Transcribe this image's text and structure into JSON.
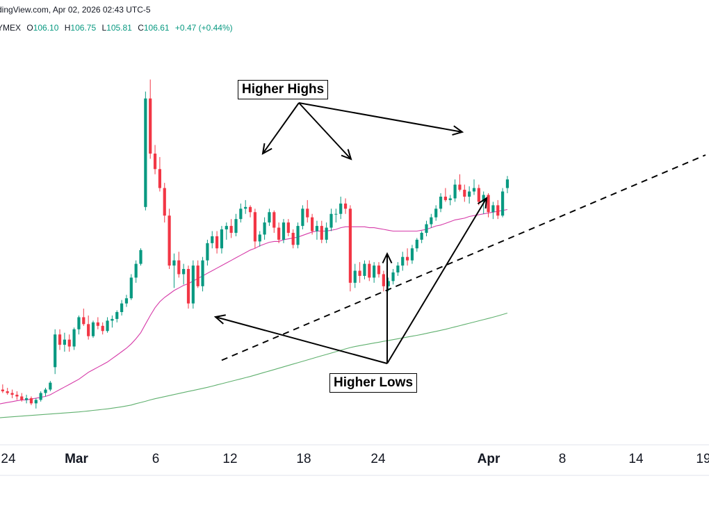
{
  "header": {
    "source_line": "dingView.com, Apr 02, 2026 02:43 UTC-5",
    "exchange": "YMEX",
    "ohlc": {
      "o_label": "O",
      "o": "106.10",
      "h_label": "H",
      "h": "106.75",
      "l_label": "L",
      "l": "105.81",
      "c_label": "C",
      "c": "106.61",
      "change": "+0.47 (+0.44%)"
    }
  },
  "annotations": {
    "higher_highs": "Higher Highs",
    "higher_lows": "Higher Lows"
  },
  "colors": {
    "up": "#089981",
    "down": "#f23645",
    "ma_fast": "#d63aa8",
    "ma_slow": "#5fb06e",
    "trendline": "#000000",
    "arrow": "#000000"
  },
  "chart_data": {
    "type": "candlestick",
    "x_tick_labels": [
      "24",
      "Mar",
      "6",
      "12",
      "18",
      "24",
      "Apr",
      "8",
      "14",
      "19"
    ],
    "ylim": [
      92,
      115
    ],
    "candles": [
      [
        94.2,
        94.6,
        94.0,
        94.4
      ],
      [
        94.4,
        94.7,
        94.2,
        94.3
      ],
      [
        94.3,
        94.5,
        94.1,
        94.2
      ],
      [
        94.2,
        94.4,
        93.9,
        94.1
      ],
      [
        94.1,
        94.3,
        93.8,
        94.0
      ],
      [
        94.0,
        94.2,
        93.7,
        93.8
      ],
      [
        93.8,
        94.1,
        93.6,
        93.9
      ],
      [
        93.9,
        94.0,
        93.5,
        93.6
      ],
      [
        93.6,
        93.9,
        93.3,
        93.8
      ],
      [
        93.8,
        94.3,
        93.7,
        94.2
      ],
      [
        94.2,
        94.5,
        94.0,
        94.4
      ],
      [
        94.4,
        94.9,
        94.3,
        94.8
      ],
      [
        95.7,
        97.9,
        95.3,
        97.6
      ],
      [
        97.6,
        97.9,
        96.7,
        97.0
      ],
      [
        97.0,
        97.7,
        96.6,
        97.3
      ],
      [
        97.3,
        97.6,
        96.6,
        96.9
      ],
      [
        96.9,
        98.0,
        96.7,
        97.9
      ],
      [
        97.9,
        98.7,
        97.6,
        98.6
      ],
      [
        98.6,
        99.1,
        98.1,
        98.2
      ],
      [
        98.2,
        98.7,
        97.3,
        97.5
      ],
      [
        97.5,
        98.4,
        97.4,
        98.3
      ],
      [
        98.3,
        98.6,
        97.9,
        98.1
      ],
      [
        98.1,
        98.3,
        97.6,
        97.8
      ],
      [
        97.8,
        98.6,
        97.7,
        98.4
      ],
      [
        98.4,
        98.7,
        98.0,
        98.5
      ],
      [
        98.5,
        99.0,
        98.3,
        98.9
      ],
      [
        98.9,
        99.6,
        98.7,
        99.4
      ],
      [
        99.4,
        99.9,
        99.2,
        99.7
      ],
      [
        99.7,
        101.1,
        99.6,
        100.9
      ],
      [
        100.9,
        101.9,
        100.6,
        101.7
      ],
      [
        101.7,
        102.6,
        101.6,
        102.5
      ],
      [
        105.0,
        111.7,
        104.8,
        111.3
      ],
      [
        111.3,
        112.4,
        107.8,
        108.1
      ],
      [
        108.1,
        108.6,
        106.9,
        107.2
      ],
      [
        107.2,
        107.9,
        105.9,
        106.1
      ],
      [
        106.1,
        106.4,
        104.1,
        104.5
      ],
      [
        104.5,
        104.9,
        101.4,
        101.6
      ],
      [
        101.6,
        102.3,
        100.3,
        101.9
      ],
      [
        101.9,
        102.4,
        100.9,
        101.1
      ],
      [
        101.1,
        101.7,
        100.5,
        101.4
      ],
      [
        101.4,
        101.6,
        99.1,
        99.4
      ],
      [
        99.4,
        101.9,
        99.1,
        101.6
      ],
      [
        101.6,
        101.9,
        100.3,
        100.4
      ],
      [
        100.4,
        102.1,
        100.1,
        101.9
      ],
      [
        101.9,
        103.1,
        101.6,
        102.9
      ],
      [
        102.9,
        103.6,
        102.6,
        103.3
      ],
      [
        103.3,
        103.6,
        102.3,
        102.6
      ],
      [
        102.6,
        103.9,
        102.3,
        103.7
      ],
      [
        103.7,
        104.1,
        103.1,
        103.9
      ],
      [
        103.9,
        104.3,
        103.2,
        103.5
      ],
      [
        103.5,
        104.6,
        103.3,
        104.3
      ],
      [
        104.3,
        105.2,
        104.1,
        104.9
      ],
      [
        104.9,
        105.4,
        104.6,
        105.0
      ],
      [
        105.0,
        105.1,
        104.4,
        104.7
      ],
      [
        104.7,
        104.9,
        102.6,
        103.0
      ],
      [
        103.0,
        103.6,
        102.7,
        103.4
      ],
      [
        103.4,
        104.4,
        103.1,
        104.1
      ],
      [
        104.1,
        104.9,
        103.9,
        104.7
      ],
      [
        104.7,
        104.8,
        103.5,
        103.8
      ],
      [
        103.8,
        104.1,
        102.9,
        103.1
      ],
      [
        103.1,
        104.3,
        102.9,
        104.1
      ],
      [
        104.1,
        104.3,
        103.3,
        103.5
      ],
      [
        103.5,
        103.7,
        102.6,
        102.8
      ],
      [
        102.8,
        104.1,
        102.6,
        103.9
      ],
      [
        103.9,
        105.1,
        103.7,
        104.9
      ],
      [
        104.9,
        105.4,
        104.1,
        104.4
      ],
      [
        104.4,
        104.6,
        103.4,
        103.6
      ],
      [
        103.6,
        104.2,
        103.1,
        103.9
      ],
      [
        103.9,
        104.2,
        102.9,
        103.1
      ],
      [
        103.1,
        104.1,
        102.9,
        103.8
      ],
      [
        103.8,
        104.9,
        103.6,
        104.6
      ],
      [
        104.6,
        104.9,
        104.1,
        104.6
      ],
      [
        104.6,
        105.6,
        104.3,
        105.2
      ],
      [
        105.2,
        105.5,
        104.6,
        104.9
      ],
      [
        104.9,
        105.1,
        100.1,
        100.6
      ],
      [
        100.6,
        101.7,
        100.3,
        101.3
      ],
      [
        101.3,
        101.8,
        100.6,
        101.0
      ],
      [
        101.0,
        101.9,
        100.8,
        101.7
      ],
      [
        101.7,
        101.9,
        100.7,
        100.9
      ],
      [
        100.9,
        101.8,
        100.6,
        101.6
      ],
      [
        101.6,
        101.8,
        100.9,
        101.1
      ],
      [
        101.1,
        101.3,
        100.1,
        100.4
      ],
      [
        100.4,
        100.9,
        100.1,
        100.7
      ],
      [
        100.7,
        101.4,
        100.5,
        101.2
      ],
      [
        101.2,
        101.8,
        101.0,
        101.6
      ],
      [
        101.6,
        102.4,
        101.3,
        102.1
      ],
      [
        102.1,
        102.6,
        101.6,
        101.9
      ],
      [
        101.9,
        102.8,
        101.7,
        102.6
      ],
      [
        102.6,
        103.2,
        102.4,
        103.1
      ],
      [
        103.1,
        103.6,
        102.9,
        103.5
      ],
      [
        103.5,
        104.2,
        103.3,
        104.0
      ],
      [
        104.0,
        104.6,
        103.8,
        104.4
      ],
      [
        104.4,
        105.1,
        104.2,
        104.9
      ],
      [
        104.9,
        105.8,
        104.7,
        105.6
      ],
      [
        105.6,
        106.1,
        105.3,
        105.4
      ],
      [
        105.4,
        105.7,
        105.1,
        105.5
      ],
      [
        105.5,
        106.6,
        105.3,
        106.3
      ],
      [
        106.3,
        106.9,
        105.9,
        106.0
      ],
      [
        106.0,
        106.3,
        105.3,
        105.6
      ],
      [
        105.6,
        106.2,
        105.2,
        105.9
      ],
      [
        105.9,
        106.6,
        105.7,
        106.1
      ],
      [
        106.1,
        106.3,
        105.1,
        105.3
      ],
      [
        105.3,
        105.9,
        104.6,
        105.7
      ],
      [
        105.7,
        105.8,
        104.4,
        104.7
      ],
      [
        104.7,
        105.3,
        104.3,
        105.1
      ],
      [
        105.1,
        105.4,
        104.3,
        104.5
      ],
      [
        104.5,
        106.1,
        104.4,
        105.9
      ],
      [
        106.1,
        106.8,
        105.8,
        106.6
      ]
    ],
    "series": [
      {
        "name": "",
        "values": [
          93.55,
          93.6,
          93.65,
          93.7,
          93.75,
          93.8,
          93.8,
          93.85,
          93.9,
          93.95,
          94.0,
          94.1,
          94.25,
          94.4,
          94.55,
          94.7,
          94.85,
          95.0,
          95.2,
          95.4,
          95.55,
          95.7,
          95.85,
          96.0,
          96.2,
          96.4,
          96.6,
          96.8,
          97.05,
          97.35,
          97.7,
          98.2,
          98.7,
          99.15,
          99.5,
          99.75,
          99.95,
          100.15,
          100.3,
          100.45,
          100.55,
          100.7,
          100.85,
          101.0,
          101.15,
          101.3,
          101.45,
          101.6,
          101.75,
          101.9,
          102.05,
          102.2,
          102.35,
          102.5,
          102.6,
          102.75,
          102.85,
          102.95,
          103.0,
          103.0,
          103.1,
          103.15,
          103.2,
          103.25,
          103.35,
          103.45,
          103.55,
          103.6,
          103.6,
          103.6,
          103.65,
          103.7,
          103.8,
          103.85,
          103.85,
          103.85,
          103.85,
          103.85,
          103.8,
          103.8,
          103.75,
          103.7,
          103.65,
          103.6,
          103.6,
          103.6,
          103.6,
          103.6,
          103.6,
          103.65,
          103.7,
          103.8,
          103.9,
          103.95,
          104.05,
          104.15,
          104.25,
          104.3,
          104.35,
          104.45,
          104.5,
          104.55,
          104.6,
          104.65,
          104.7,
          104.75,
          104.8,
          104.85
        ]
      },
      {
        "name": "",
        "values": [
          92.75,
          92.78,
          92.8,
          92.82,
          92.84,
          92.86,
          92.88,
          92.9,
          92.92,
          92.94,
          92.96,
          92.98,
          93.0,
          93.02,
          93.04,
          93.06,
          93.08,
          93.1,
          93.13,
          93.16,
          93.19,
          93.22,
          93.25,
          93.28,
          93.32,
          93.36,
          93.4,
          93.45,
          93.5,
          93.58,
          93.65,
          93.72,
          93.8,
          93.87,
          93.93,
          93.99,
          94.05,
          94.11,
          94.17,
          94.23,
          94.29,
          94.35,
          94.41,
          94.47,
          94.53,
          94.6,
          94.67,
          94.74,
          94.81,
          94.88,
          94.95,
          95.02,
          95.09,
          95.16,
          95.24,
          95.32,
          95.4,
          95.48,
          95.56,
          95.64,
          95.72,
          95.8,
          95.88,
          95.96,
          96.04,
          96.12,
          96.2,
          96.28,
          96.36,
          96.44,
          96.52,
          96.6,
          96.68,
          96.76,
          96.84,
          96.9,
          96.95,
          97.0,
          97.05,
          97.1,
          97.15,
          97.2,
          97.25,
          97.3,
          97.35,
          97.4,
          97.45,
          97.5,
          97.55,
          97.6,
          97.66,
          97.72,
          97.78,
          97.84,
          97.9,
          97.97,
          98.04,
          98.11,
          98.18,
          98.25,
          98.32,
          98.39,
          98.46,
          98.53,
          98.6,
          98.68,
          98.76,
          98.84
        ]
      }
    ],
    "trendline": {
      "from": [
        96.1,
        47
      ],
      "to": [
        104.6,
        119
      ]
    }
  }
}
